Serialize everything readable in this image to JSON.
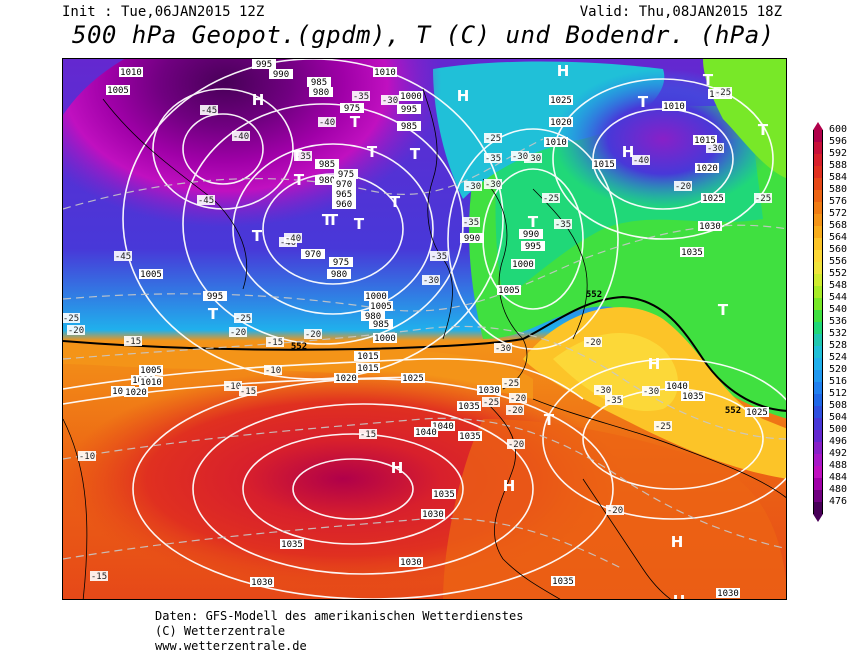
{
  "header": {
    "init": "Init : Tue,06JAN2015 12Z",
    "valid": "Valid: Thu,08JAN2015 18Z",
    "title": "500 hPa Geopot.(gpdm), T (C) und Bodendr. (hPa)"
  },
  "footer": {
    "line1": "Daten: GFS-Modell des amerikanischen Wetterdienstes",
    "line2": "(C) Wetterzentrale",
    "line3": "www.wetterzentrale.de"
  },
  "legend": {
    "levels": [
      "600",
      "596",
      "592",
      "588",
      "584",
      "580",
      "576",
      "572",
      "568",
      "564",
      "560",
      "556",
      "552",
      "548",
      "544",
      "540",
      "536",
      "532",
      "528",
      "524",
      "520",
      "516",
      "512",
      "508",
      "504",
      "500",
      "496",
      "492",
      "488",
      "484",
      "480",
      "476"
    ],
    "colors": [
      "#b0004a",
      "#c8103a",
      "#d8202c",
      "#e03020",
      "#e64818",
      "#ec6414",
      "#f07c14",
      "#f49418",
      "#f8ac1c",
      "#fcc428",
      "#fcd838",
      "#f0e43c",
      "#d0ec30",
      "#a8ec28",
      "#78e828",
      "#40e040",
      "#20d878",
      "#20c8b0",
      "#20c0d8",
      "#20b0ec",
      "#2098f0",
      "#2080f0",
      "#2068e8",
      "#3050e0",
      "#4838d8",
      "#6428d0",
      "#8820c8",
      "#a818c8",
      "#c010c0",
      "#a000a8",
      "#700080",
      "#480058"
    ]
  },
  "map": {
    "isobar_labels": [
      {
        "t": "1010"
      },
      {
        "t": "1005"
      },
      {
        "t": "995"
      },
      {
        "t": "990"
      },
      {
        "t": "985"
      },
      {
        "t": "980"
      },
      {
        "t": "975"
      },
      {
        "t": "1010"
      },
      {
        "t": "1000"
      },
      {
        "t": "995"
      },
      {
        "t": "985"
      },
      {
        "t": "1010"
      },
      {
        "t": "1025"
      },
      {
        "t": "1020"
      },
      {
        "t": "1015"
      },
      {
        "t": "1010"
      },
      {
        "t": "1000"
      },
      {
        "t": "1015"
      },
      {
        "t": "1020"
      },
      {
        "t": "1025"
      },
      {
        "t": "985"
      },
      {
        "t": "980"
      },
      {
        "t": "975"
      },
      {
        "t": "970"
      },
      {
        "t": "965"
      },
      {
        "t": "960"
      },
      {
        "t": "970"
      },
      {
        "t": "975"
      },
      {
        "t": "980"
      },
      {
        "t": "990"
      },
      {
        "t": "990"
      },
      {
        "t": "995"
      },
      {
        "t": "1000"
      },
      {
        "t": "1005"
      },
      {
        "t": "1030"
      },
      {
        "t": "1035"
      },
      {
        "t": "1005"
      },
      {
        "t": "995"
      },
      {
        "t": "1000"
      },
      {
        "t": "1005"
      },
      {
        "t": "1010"
      },
      {
        "t": "1015"
      },
      {
        "t": "1020"
      },
      {
        "t": "980"
      },
      {
        "t": "985"
      },
      {
        "t": "1000"
      },
      {
        "t": "1010"
      },
      {
        "t": "1015"
      },
      {
        "t": "1020"
      },
      {
        "t": "1025"
      },
      {
        "t": "1030"
      },
      {
        "t": "1035"
      },
      {
        "t": "1040"
      },
      {
        "t": "1040"
      },
      {
        "t": "1035"
      },
      {
        "t": "1025"
      },
      {
        "t": "1005"
      },
      {
        "t": "1010"
      },
      {
        "t": "1015"
      },
      {
        "t": "1040"
      },
      {
        "t": "1035"
      },
      {
        "t": "1035"
      },
      {
        "t": "1030"
      },
      {
        "t": "1035"
      },
      {
        "t": "1030"
      },
      {
        "t": "1030"
      },
      {
        "t": "1035"
      },
      {
        "t": "1030"
      }
    ],
    "temp_labels": [
      {
        "t": "-45"
      },
      {
        "t": "-40"
      },
      {
        "t": "-40"
      },
      {
        "t": "-35"
      },
      {
        "t": "-35"
      },
      {
        "t": "-30"
      },
      {
        "t": "-45"
      },
      {
        "t": "-40"
      },
      {
        "t": "-45"
      },
      {
        "t": "-40"
      },
      {
        "t": "-35"
      },
      {
        "t": "-30"
      },
      {
        "t": "-25"
      },
      {
        "t": "-30"
      },
      {
        "t": "-30"
      },
      {
        "t": "-30"
      },
      {
        "t": "-35"
      },
      {
        "t": "-40"
      },
      {
        "t": "-25"
      },
      {
        "t": "-30"
      },
      {
        "t": "-20"
      },
      {
        "t": "-25"
      },
      {
        "t": "-25"
      },
      {
        "t": "-20"
      },
      {
        "t": "-15"
      },
      {
        "t": "-25"
      },
      {
        "t": "-20"
      },
      {
        "t": "-15"
      },
      {
        "t": "-10"
      },
      {
        "t": "-30"
      },
      {
        "t": "-35"
      },
      {
        "t": "-25"
      },
      {
        "t": "-35"
      },
      {
        "t": "-30"
      },
      {
        "t": "-20"
      },
      {
        "t": "-25"
      },
      {
        "t": "-20"
      },
      {
        "t": "-20"
      },
      {
        "t": "-25"
      },
      {
        "t": "-30"
      },
      {
        "t": "-35"
      },
      {
        "t": "-30"
      },
      {
        "t": "-25"
      },
      {
        "t": "-20"
      },
      {
        "t": "-15"
      },
      {
        "t": "-10"
      },
      {
        "t": "-15"
      },
      {
        "t": "-20"
      },
      {
        "t": "-10"
      },
      {
        "t": "-15"
      },
      {
        "t": "-20"
      }
    ],
    "contour_552": [
      {
        "t": "552"
      },
      {
        "t": "552"
      },
      {
        "t": "552"
      }
    ],
    "pressure_centers": [
      {
        "t": "H"
      },
      {
        "t": "H"
      },
      {
        "t": "H"
      },
      {
        "t": "H"
      },
      {
        "t": "H"
      },
      {
        "t": "H"
      },
      {
        "t": "H"
      },
      {
        "t": "H"
      },
      {
        "t": "H"
      },
      {
        "t": "T"
      },
      {
        "t": "T"
      },
      {
        "t": "T"
      },
      {
        "t": "T"
      },
      {
        "t": "T"
      },
      {
        "t": "T"
      },
      {
        "t": "T"
      },
      {
        "t": "T"
      },
      {
        "t": "T"
      },
      {
        "t": "T"
      },
      {
        "t": "T"
      },
      {
        "t": "T"
      },
      {
        "t": "T"
      },
      {
        "t": "T"
      },
      {
        "t": "T"
      },
      {
        "t": "T"
      },
      {
        "t": "T"
      }
    ]
  }
}
